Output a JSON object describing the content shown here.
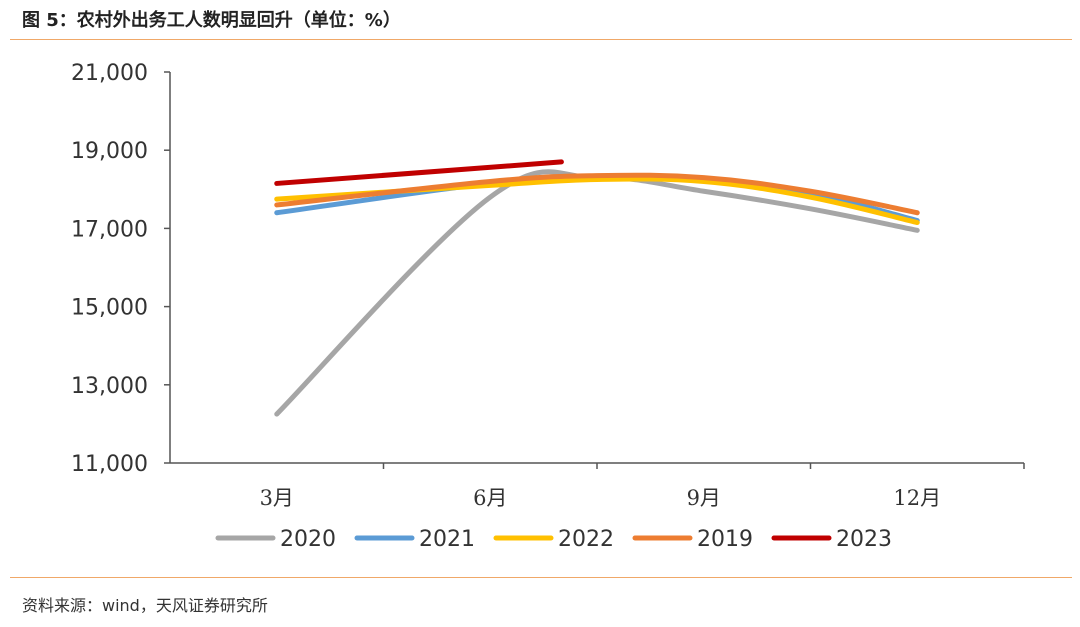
{
  "header": {
    "title": "图 5：农村外出务工人数明显回升（单位：%）"
  },
  "footer": {
    "source": "资料来源：wind，天风证券研究所"
  },
  "chart_data": {
    "type": "line",
    "categories": [
      "3月",
      "6月",
      "9月",
      "12月"
    ],
    "ylim": [
      11000,
      21000
    ],
    "yticks": [
      "21,000",
      "19,000",
      "17,000",
      "15,000",
      "13,000",
      "11,000"
    ],
    "ytick_values": [
      21000,
      19000,
      17000,
      15000,
      13000,
      11000
    ],
    "grid": false,
    "legend": "bottom",
    "series": [
      {
        "name": "2020",
        "color": "#a6a6a6",
        "x": [
          3,
          6,
          7.5,
          9,
          10.5,
          12
        ],
        "values": [
          12250,
          17800,
          18300,
          17950,
          17500,
          16950
        ]
      },
      {
        "name": "2021",
        "color": "#5b9bd5",
        "x": [
          3,
          6,
          7.5,
          9,
          10.5,
          12
        ],
        "values": [
          17400,
          18150,
          18300,
          18250,
          17900,
          17200
        ]
      },
      {
        "name": "2022",
        "color": "#ffc000",
        "x": [
          3,
          6,
          7.5,
          9,
          10.5,
          12
        ],
        "values": [
          17750,
          18100,
          18250,
          18200,
          17800,
          17150
        ]
      },
      {
        "name": "2019",
        "color": "#ed7d31",
        "x": [
          3,
          6,
          7.5,
          9,
          10.5,
          12
        ],
        "values": [
          17600,
          18200,
          18350,
          18300,
          17950,
          17400
        ]
      },
      {
        "name": "2023",
        "color": "#c00000",
        "x": [
          3,
          7
        ],
        "values": [
          18150,
          18700
        ]
      }
    ]
  }
}
